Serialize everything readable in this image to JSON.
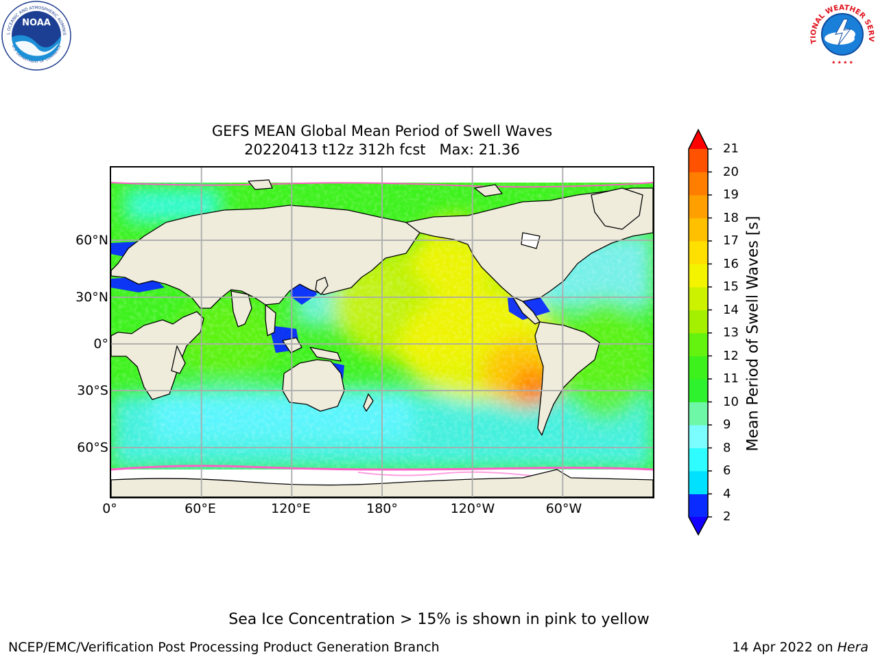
{
  "title_line1": "GEFS MEAN Global Mean Period of Swell Waves",
  "title_line2_run": "20220413 t12z 312h fcst",
  "title_line2_max": "Max: 21.36",
  "map": {
    "projection": "equirectangular, 0° to 360° longitude (Pacific-centred)",
    "gridlines": "on",
    "land_color": "#efecdc",
    "coastline_color": "#000000",
    "gridline_color": "#aaaaaa",
    "lat_ticks": [
      "60°N",
      "30°N",
      "0°",
      "30°S",
      "60°S"
    ],
    "lon_ticks": [
      "0°",
      "60°E",
      "120°E",
      "180°",
      "120°W",
      "60°W"
    ]
  },
  "colorbar": {
    "label": "Mean Period of Swell Waves [s]",
    "levels": [
      "2",
      "4",
      "6",
      "8",
      "9",
      "10",
      "11",
      "12",
      "13",
      "14",
      "15",
      "16",
      "17",
      "18",
      "19",
      "20",
      "21"
    ],
    "colors": [
      "#0a2bff",
      "#00e0ff",
      "#2efcff",
      "#7bfcff",
      "#6ef7a6",
      "#2df22d",
      "#3df21c",
      "#64f20f",
      "#a5ef00",
      "#ccf200",
      "#f4f400",
      "#ffe000",
      "#ffc000",
      "#ffa000",
      "#ff7e00",
      "#ff5200",
      "#ff2a00"
    ],
    "under_color": "#1400ff",
    "over_color": "#ff0000",
    "extend": "both"
  },
  "footer_note": "Sea Ice Concentration > 15% is shown in pink to yellow",
  "footer_left": "NCEP/EMC/Verification Post Processing Product Generation Branch",
  "footer_date": "14 Apr 2022 on",
  "footer_machine": "Hera",
  "logos": {
    "noaa_text": "NOAA",
    "noaa_ring_text": "NATIONAL OCEANIC AND ATMOSPHERIC ADMINISTRATION",
    "noaa_bottom_text": "U.S. DEPARTMENT OF COMMERCE",
    "nws_ring_text": "NATIONAL WEATHER SERVICE"
  }
}
